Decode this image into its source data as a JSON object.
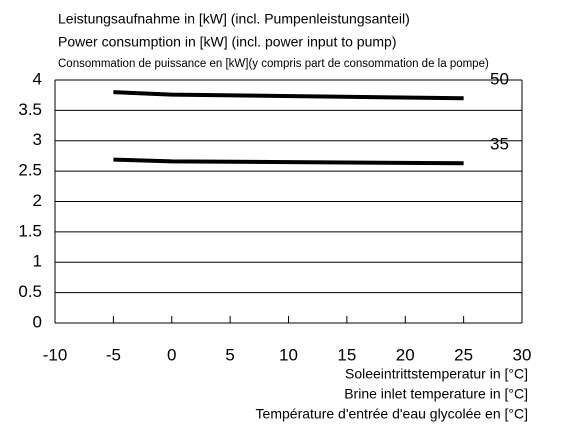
{
  "chart_data": {
    "type": "line",
    "title": [
      "Leistungsaufnahme in [kW] (incl. Pumpenleistungsanteil)",
      "Power consumption in [kW] (incl. power input to pump)",
      "Consommation de puissance en [kW](y compris part de consommation de la pompe)"
    ],
    "x_label": [
      "Soleeintrittstemperatur in [°C]",
      "Brine inlet temperature in [°C]",
      "Température d'entrée d'eau glycolée en [°C]"
    ],
    "x": [
      -5,
      0,
      25
    ],
    "series": [
      {
        "name": "50",
        "color": "#000000",
        "values": [
          3.8,
          3.76,
          3.7
        ]
      },
      {
        "name": "35",
        "color": "#000000",
        "values": [
          2.69,
          2.66,
          2.63
        ]
      }
    ],
    "xlim": [
      -10,
      30
    ],
    "xticks": [
      -10,
      -5,
      0,
      5,
      10,
      15,
      20,
      25,
      30
    ],
    "ylim": [
      0,
      4
    ],
    "yticks": [
      0,
      0.5,
      1,
      1.5,
      2,
      2.5,
      3,
      3.5,
      4
    ],
    "grid": true
  }
}
